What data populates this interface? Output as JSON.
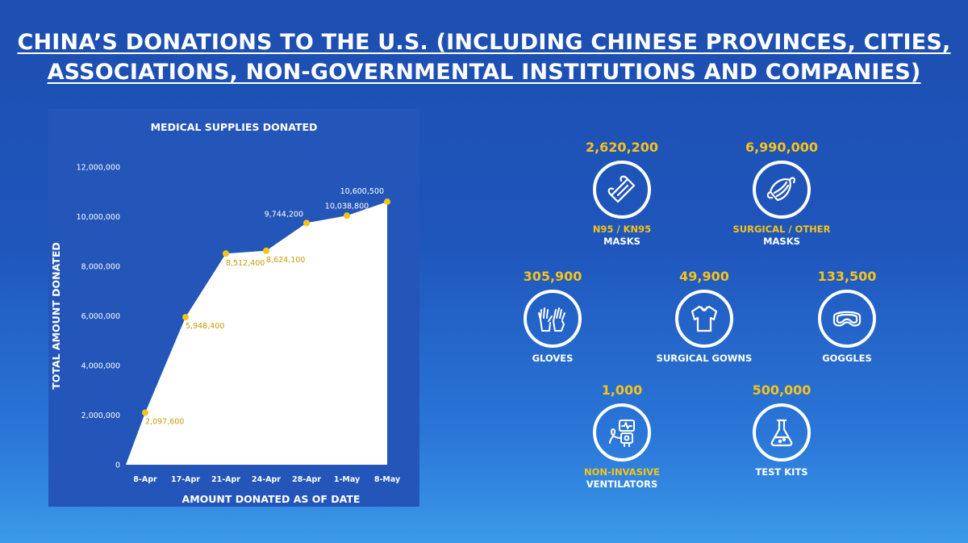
{
  "title": {
    "line1": "CHINA’S DONATIONS TO THE U.S. (INCLUDING CHINESE PROVINCES, CITIES,",
    "line2": "ASSOCIATIONS, NON-GOVERNMENTAL INSTITUTIONS AND COMPANIES)"
  },
  "chart_data": {
    "type": "area",
    "title": "MEDICAL SUPPLIES DONATED",
    "xlabel": "AMOUNT DONATED AS OF DATE",
    "ylabel": "TOTAL AMOUNT DONATED",
    "categories": [
      "8-Apr",
      "17-Apr",
      "21-Apr",
      "24-Apr",
      "28-Apr",
      "1-May",
      "8-May"
    ],
    "values": [
      2097600,
      5948400,
      8512400,
      8624100,
      9744200,
      10038800,
      10600500
    ],
    "data_labels": [
      "2,097,600",
      "5,948,400",
      "8,512,400",
      "8,624,100",
      "9,744,200",
      "10,038,800",
      "10,600,500"
    ],
    "ylim": [
      0,
      12000000
    ],
    "yticks": [
      0,
      2000000,
      4000000,
      6000000,
      8000000,
      10000000,
      12000000
    ],
    "ytick_labels": [
      "0",
      "2,000,000",
      "4,000,000",
      "6,000,000",
      "8,000,000",
      "10,000,000",
      "12,000,000"
    ],
    "grid": false,
    "legend": "none",
    "area_color": "#ffffff",
    "point_color": "#f6c31a",
    "label_color_highlight": "#c99a06"
  },
  "metrics": [
    {
      "value": "2,620,200",
      "label_highlight": "N95 / KN95",
      "label": "MASKS",
      "icon": "n95-mask-icon"
    },
    {
      "value": "6,990,000",
      "label_highlight": "SURGICAL / OTHER",
      "label": "MASKS",
      "icon": "surgical-mask-icon"
    },
    {
      "value": "305,900",
      "label_highlight": "",
      "label": "GLOVES",
      "icon": "gloves-icon"
    },
    {
      "value": "49,900",
      "label_highlight": "",
      "label": "SURGICAL GOWNS",
      "icon": "gown-icon"
    },
    {
      "value": "133,500",
      "label_highlight": "",
      "label": "GOGGLES",
      "icon": "goggles-icon"
    },
    {
      "value": "1,000",
      "label_highlight": "NON-INVASIVE",
      "label": "VENTILATORS",
      "icon": "ventilator-icon"
    },
    {
      "value": "500,000",
      "label_highlight": "",
      "label": "TEST KITS",
      "icon": "test-kit-icon"
    }
  ],
  "colors": {
    "background": "#1f56bc",
    "accent": "#f6c31a",
    "text": "#ffffff"
  }
}
